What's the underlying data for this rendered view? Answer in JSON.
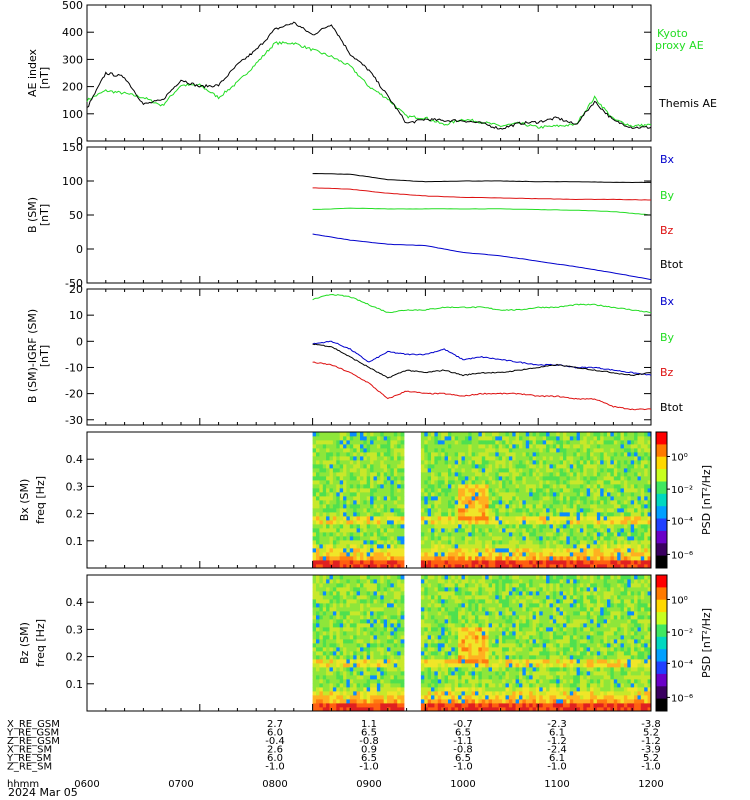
{
  "colors": {
    "black": "#000000",
    "green": "#22dd22",
    "red": "#dd1111",
    "blue": "#0000cc",
    "axis": "#000000"
  },
  "chart_data": [
    {
      "type": "line",
      "panel": "ae_index",
      "ylabel_lines": [
        "AE index",
        "[nT]"
      ],
      "ylim": [
        0,
        500
      ],
      "yticks": [
        0,
        100,
        200,
        300,
        400,
        500
      ],
      "xlim": [
        0,
        300
      ],
      "series": [
        {
          "name": "Kyoto proxy AE",
          "name_lines": [
            "Kyoto",
            "proxy AE"
          ],
          "color": "green",
          "x": [
            0,
            10,
            20,
            30,
            40,
            50,
            60,
            70,
            80,
            90,
            100,
            110,
            120,
            130,
            140,
            150,
            160,
            170,
            180,
            190,
            200,
            210,
            220,
            230,
            240,
            250,
            260,
            270,
            280,
            290,
            300
          ],
          "y": [
            150,
            185,
            175,
            160,
            130,
            205,
            205,
            160,
            215,
            285,
            360,
            360,
            335,
            310,
            275,
            200,
            155,
            90,
            85,
            60,
            80,
            70,
            55,
            65,
            50,
            55,
            60,
            160,
            80,
            55,
            60
          ]
        },
        {
          "name": "Themis AE",
          "name_lines": [
            "Themis AE"
          ],
          "color": "black",
          "x": [
            0,
            10,
            20,
            30,
            40,
            50,
            60,
            70,
            80,
            90,
            100,
            110,
            120,
            130,
            140,
            150,
            160,
            170,
            180,
            190,
            200,
            210,
            220,
            230,
            240,
            250,
            260,
            270,
            280,
            290,
            300
          ],
          "y": [
            120,
            250,
            235,
            135,
            150,
            225,
            200,
            205,
            280,
            335,
            410,
            435,
            390,
            430,
            320,
            260,
            165,
            65,
            80,
            75,
            75,
            65,
            45,
            65,
            70,
            85,
            60,
            145,
            75,
            50,
            50
          ]
        }
      ]
    },
    {
      "type": "line",
      "panel": "b_sm",
      "ylabel_lines": [
        "B (SM)",
        "[nT]"
      ],
      "ylim": [
        -50,
        150
      ],
      "yticks": [
        -50,
        0,
        50,
        100,
        150
      ],
      "xlim": [
        0,
        300
      ],
      "series": [
        {
          "name": "Bx",
          "color": "blue",
          "x": [
            120,
            140,
            160,
            180,
            200,
            220,
            240,
            260,
            280,
            300
          ],
          "y": [
            22,
            13,
            7,
            5,
            -5,
            -10,
            -18,
            -26,
            -35,
            -45
          ]
        },
        {
          "name": "By",
          "color": "green",
          "x": [
            120,
            140,
            160,
            180,
            200,
            220,
            240,
            260,
            280,
            300
          ],
          "y": [
            58,
            60,
            59,
            59,
            59,
            59,
            58,
            57,
            55,
            50
          ]
        },
        {
          "name": "Bz",
          "color": "red",
          "x": [
            120,
            140,
            160,
            180,
            200,
            220,
            240,
            260,
            280,
            300
          ],
          "y": [
            90,
            88,
            82,
            78,
            76,
            75,
            74,
            73,
            73,
            72
          ]
        },
        {
          "name": "Btot",
          "color": "black",
          "x": [
            120,
            140,
            160,
            180,
            200,
            220,
            240,
            260,
            280,
            300
          ],
          "y": [
            111,
            110,
            102,
            99,
            100,
            100,
            99,
            99,
            98,
            98
          ]
        }
      ]
    },
    {
      "type": "line",
      "panel": "b_minus_igrf",
      "ylabel_lines": [
        "B (SM)-IGRF (SM)",
        "[nT]"
      ],
      "ylim": [
        -32,
        20
      ],
      "yticks": [
        -30,
        -20,
        -10,
        0,
        10,
        20
      ],
      "xlim": [
        0,
        300
      ],
      "series": [
        {
          "name": "Bx",
          "color": "blue",
          "x": [
            120,
            130,
            140,
            150,
            160,
            170,
            180,
            190,
            200,
            210,
            220,
            230,
            240,
            250,
            260,
            270,
            280,
            290,
            300
          ],
          "y": [
            -1,
            0,
            -3,
            -8,
            -4,
            -5,
            -5,
            -3,
            -7,
            -6,
            -7,
            -8,
            -9,
            -9,
            -10,
            -10,
            -11,
            -12,
            -13
          ]
        },
        {
          "name": "By",
          "color": "green",
          "x": [
            120,
            130,
            140,
            150,
            160,
            170,
            180,
            190,
            200,
            210,
            220,
            230,
            240,
            250,
            260,
            270,
            280,
            290,
            300
          ],
          "y": [
            16,
            18,
            17,
            14,
            11,
            12,
            12,
            13,
            13,
            13,
            12,
            12,
            13,
            13,
            14,
            14,
            13,
            12,
            11
          ]
        },
        {
          "name": "Bz",
          "color": "red",
          "x": [
            120,
            130,
            140,
            150,
            160,
            170,
            180,
            190,
            200,
            210,
            220,
            230,
            240,
            250,
            260,
            270,
            280,
            290,
            300
          ],
          "y": [
            -8,
            -9,
            -12,
            -16,
            -22,
            -19,
            -20,
            -20,
            -21,
            -20,
            -20,
            -20,
            -21,
            -21,
            -22,
            -22,
            -25,
            -26,
            -26
          ]
        },
        {
          "name": "Btot",
          "color": "black",
          "x": [
            120,
            130,
            140,
            150,
            160,
            170,
            180,
            190,
            200,
            210,
            220,
            230,
            240,
            250,
            260,
            270,
            280,
            290,
            300
          ],
          "y": [
            -1,
            -2,
            -6,
            -10,
            -14,
            -11,
            -12,
            -11,
            -13,
            -12,
            -12,
            -11,
            -10,
            -9,
            -10,
            -11,
            -12,
            -13,
            -12
          ]
        }
      ]
    },
    {
      "type": "heatmap",
      "panel": "bx_spectrogram",
      "ylabel_lines": [
        "Bx (SM)",
        "freq [Hz]"
      ],
      "ylim": [
        0,
        0.5
      ],
      "yticks": [
        0.1,
        0.2,
        0.3,
        0.4
      ],
      "ytick_labels": [
        "0.1",
        "0.2",
        "0.3",
        "0.4"
      ],
      "colorbar_label": "PSD [nT²/Hz]",
      "colorbar_ticks": [
        "10⁰",
        "10⁻²",
        "10⁻⁴",
        "10⁻⁶"
      ],
      "data_start": 120,
      "gap": [
        170,
        176
      ],
      "xlim": [
        0,
        300
      ]
    },
    {
      "type": "heatmap",
      "panel": "bz_spectrogram",
      "ylabel_lines": [
        "Bz (SM)",
        "freq [Hz]"
      ],
      "ylim": [
        0,
        0.5
      ],
      "yticks": [
        0.1,
        0.2,
        0.3,
        0.4
      ],
      "ytick_labels": [
        "0.1",
        "0.2",
        "0.3",
        "0.4"
      ],
      "colorbar_label": "PSD [nT²/Hz]",
      "colorbar_ticks": [
        "10⁰",
        "10⁻²",
        "10⁻⁴",
        "10⁻⁶"
      ],
      "data_start": 120,
      "gap": [
        170,
        176
      ],
      "xlim": [
        0,
        300
      ]
    }
  ],
  "ephemeris": {
    "rows": [
      {
        "label": "X_RE_GSM",
        "values": [
          "2.7",
          "1.1",
          "-0.7",
          "-2.3",
          "-3.8"
        ]
      },
      {
        "label": "Y_RE_GSM",
        "values": [
          "6.0",
          "6.5",
          "6.5",
          "6.1",
          "5.2"
        ]
      },
      {
        "label": "Z_RE_GSM",
        "values": [
          "-0.4",
          "-0.8",
          "-1.1",
          "-1.2",
          "-1.2"
        ]
      },
      {
        "label": "X_RE_SM",
        "values": [
          "2.6",
          "0.9",
          "-0.8",
          "-2.4",
          "-3.9"
        ]
      },
      {
        "label": "Y_RE_SM",
        "values": [
          "6.0",
          "6.5",
          "6.5",
          "6.1",
          "5.2"
        ]
      },
      {
        "label": "Z_RE_SM",
        "values": [
          "-1.0",
          "-1.0",
          "-1.0",
          "-1.0",
          "-1.0"
        ]
      }
    ],
    "value_x": [
      120,
      180,
      240,
      300,
      360
    ],
    "time_label": "hhmm",
    "time_ticks": [
      "0600",
      "0700",
      "0800",
      "0900",
      "1000",
      "1100",
      "1200"
    ],
    "time_tick_x": [
      0,
      60,
      120,
      180,
      240,
      300,
      360
    ],
    "date": "2024 Mar 05"
  }
}
